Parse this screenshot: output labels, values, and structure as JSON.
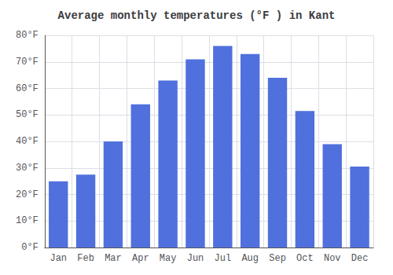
{
  "chart_data": {
    "type": "bar",
    "title": "Average monthly temperatures (°F ) in Kant",
    "categories": [
      "Jan",
      "Feb",
      "Mar",
      "Apr",
      "May",
      "Jun",
      "Jul",
      "Aug",
      "Sep",
      "Oct",
      "Nov",
      "Dec"
    ],
    "values": [
      25,
      27.5,
      40,
      54,
      63,
      71,
      76,
      73,
      64,
      51.5,
      39,
      30.5
    ],
    "ylim": [
      0,
      80
    ],
    "yticks": [
      {
        "value": 0,
        "label": "0°F"
      },
      {
        "value": 10,
        "label": "10°F"
      },
      {
        "value": 20,
        "label": "20°F"
      },
      {
        "value": 30,
        "label": "30°F"
      },
      {
        "value": 40,
        "label": "40°F"
      },
      {
        "value": 50,
        "label": "50°F"
      },
      {
        "value": 60,
        "label": "60°F"
      },
      {
        "value": 70,
        "label": "70°F"
      },
      {
        "value": 80,
        "label": "80°F"
      }
    ],
    "grid": true
  }
}
